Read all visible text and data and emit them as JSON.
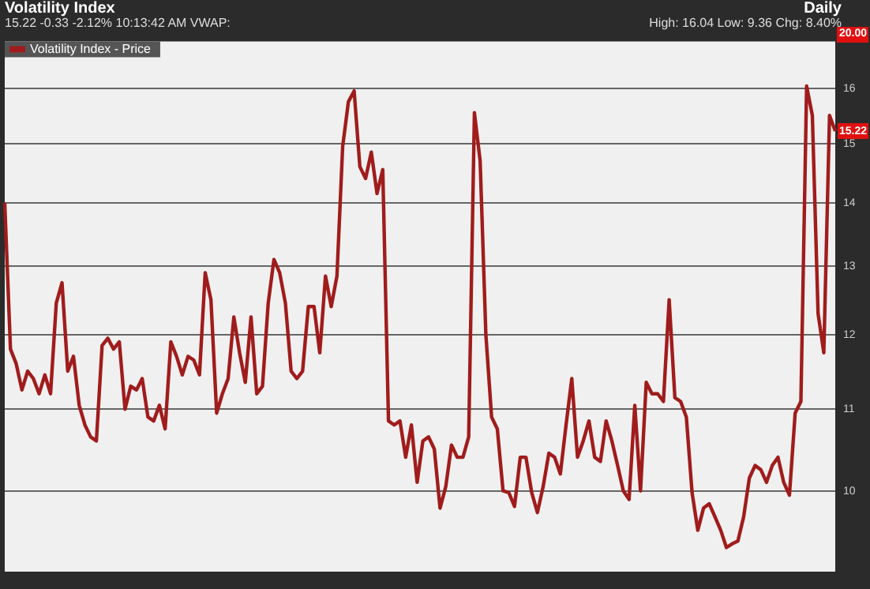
{
  "chart_data": {
    "type": "line",
    "title": "Volatility Index",
    "legend": "top left",
    "grid": "y",
    "log": true,
    "marker": "none",
    "line_style": "solid",
    "ylim": [
      9.1,
      16.9
    ],
    "yticks": [
      10,
      11,
      12,
      13,
      14,
      15,
      16
    ],
    "annotations": [
      "15.22 -0.33 -2.12% 10:13:42 AM VWAP:",
      "Daily",
      "High: 16.04 Low: 9.36 Chg: 8.40%",
      "20.00",
      {
        "text": "15.22",
        "y": 15.22
      }
    ],
    "categories": [
      null,
      null,
      null,
      null,
      null,
      null,
      null,
      null,
      null,
      null,
      null,
      null,
      null,
      null,
      null,
      null,
      null,
      null,
      null,
      null,
      null,
      null,
      null,
      null,
      null,
      null,
      null,
      null,
      null,
      null,
      null,
      null,
      null,
      null,
      null,
      null,
      null,
      null,
      null,
      null,
      null,
      null,
      null,
      null,
      null,
      null,
      null,
      null,
      null,
      null,
      null,
      null,
      null,
      null,
      null,
      null,
      null,
      null,
      null,
      null,
      null,
      null,
      null,
      null,
      null,
      null,
      null,
      null,
      null,
      null,
      null,
      null,
      null,
      null,
      null,
      null,
      null,
      null,
      null,
      null,
      null,
      null,
      null,
      null,
      null,
      null,
      null,
      null,
      null,
      null,
      null,
      null,
      null,
      null,
      null,
      null,
      null,
      null,
      null,
      null,
      null,
      null,
      null,
      null,
      null,
      null,
      null,
      null,
      null,
      null,
      null,
      null,
      null,
      null,
      null,
      null,
      null,
      null,
      null,
      null,
      null,
      null,
      null,
      null,
      null,
      null,
      null,
      null,
      null,
      null,
      null,
      null,
      null,
      null,
      null,
      null,
      null,
      null,
      null,
      null,
      null,
      null,
      null,
      null,
      null,
      null
    ],
    "series": [
      {
        "name": "Volatility Index - Price",
        "color": "#a01c1c",
        "values": [
          14.0,
          11.8,
          11.6,
          11.25,
          11.5,
          11.4,
          11.2,
          11.45,
          11.2,
          12.45,
          12.75,
          11.5,
          11.7,
          11.05,
          10.8,
          10.65,
          10.6,
          11.85,
          11.95,
          11.8,
          11.9,
          11.0,
          11.3,
          11.25,
          11.4,
          10.9,
          10.85,
          11.05,
          10.75,
          11.9,
          11.7,
          11.45,
          11.7,
          11.65,
          11.45,
          12.9,
          12.5,
          10.95,
          11.2,
          11.4,
          12.25,
          11.75,
          11.35,
          12.25,
          11.2,
          11.3,
          12.45,
          13.1,
          12.9,
          12.45,
          11.5,
          11.4,
          11.5,
          12.4,
          12.4,
          11.75,
          12.85,
          12.4,
          12.85,
          14.95,
          15.75,
          15.95,
          14.6,
          14.4,
          14.85,
          14.15,
          14.55,
          10.85,
          10.8,
          10.85,
          10.4,
          10.8,
          10.1,
          10.6,
          10.65,
          10.5,
          9.8,
          10.05,
          10.55,
          10.4,
          10.4,
          10.65,
          15.55,
          14.7,
          12.0,
          10.9,
          10.75,
          10.0,
          9.98,
          9.82,
          10.4,
          10.4,
          9.98,
          9.75,
          10.05,
          10.45,
          10.4,
          10.2,
          10.8,
          11.4,
          10.4,
          10.6,
          10.85,
          10.4,
          10.35,
          10.85,
          10.6,
          10.3,
          10.0,
          9.9,
          11.05,
          10.0,
          11.35,
          11.2,
          11.2,
          11.1,
          12.5,
          11.15,
          11.1,
          10.9,
          9.98,
          9.55,
          9.8,
          9.85,
          9.7,
          9.55,
          9.36,
          9.4,
          9.43,
          9.7,
          10.15,
          10.3,
          10.25,
          10.1,
          10.3,
          10.4,
          10.1,
          9.95,
          10.95,
          11.1,
          16.04,
          15.5,
          12.3,
          11.75,
          15.5,
          15.22
        ]
      }
    ]
  }
}
